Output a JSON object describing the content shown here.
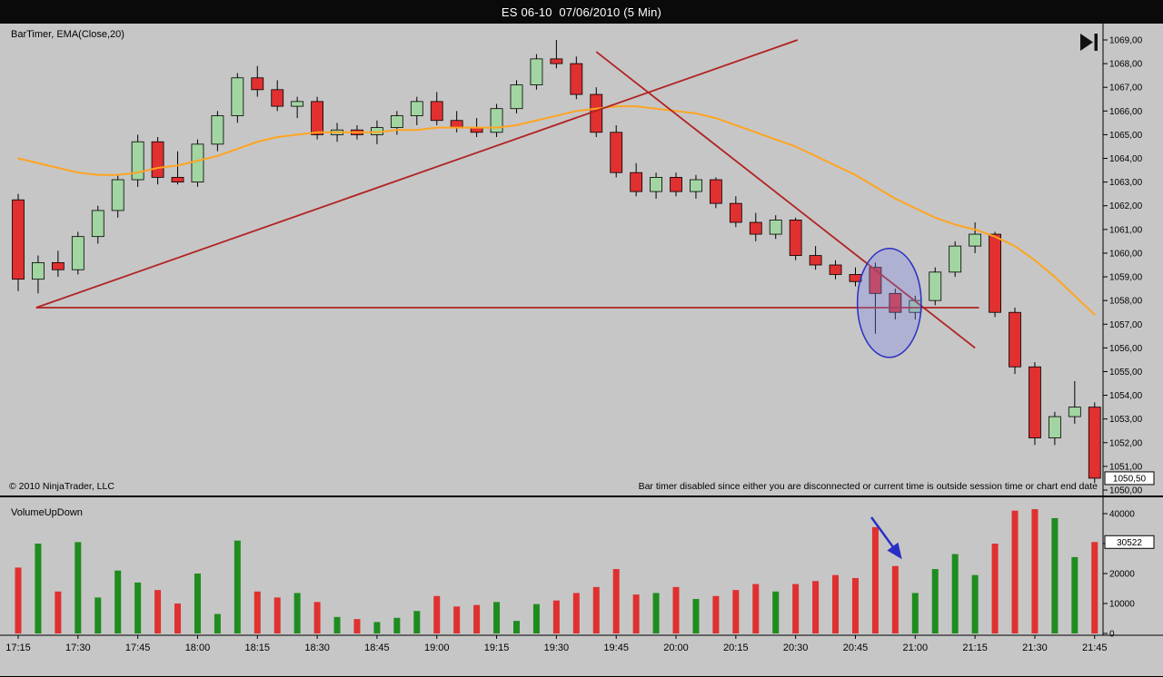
{
  "title_bar": {
    "title": "ES 06-10  07/06/2010 (5 Min)"
  },
  "price_panel": {
    "indicator_label": "BarTimer, EMA(Close,20)",
    "copyright": "© 2010 NinjaTrader, LLC",
    "bar_timer_message": "Bar timer disabled since either you are disconnected or current time is outside session time or chart end date",
    "price_marker": "1050,50"
  },
  "volume_panel": {
    "label": "VolumeUpDown",
    "volume_marker": "30522"
  },
  "chart_data": {
    "type": "candlestick+volume",
    "title": "ES 06-10  07/06/2010 (5 Min)",
    "instrument": "ES 06-10",
    "session_date": "07/06/2010",
    "interval": "5 Min",
    "times": [
      "17:15",
      "17:20",
      "17:25",
      "17:30",
      "17:35",
      "17:40",
      "17:45",
      "17:50",
      "17:55",
      "18:00",
      "18:05",
      "18:10",
      "18:15",
      "18:20",
      "18:25",
      "18:30",
      "18:35",
      "18:40",
      "18:45",
      "18:50",
      "18:55",
      "19:00",
      "19:05",
      "19:10",
      "19:15",
      "19:20",
      "19:25",
      "19:30",
      "19:35",
      "19:40",
      "19:45",
      "19:50",
      "19:55",
      "20:00",
      "20:05",
      "20:10",
      "20:15",
      "20:20",
      "20:25",
      "20:30",
      "20:35",
      "20:40",
      "20:45",
      "20:50",
      "20:55",
      "21:00",
      "21:05",
      "21:10",
      "21:15",
      "21:20",
      "21:25",
      "21:30",
      "21:35",
      "21:40",
      "21:45"
    ],
    "candles": [
      [
        1062.25,
        1062.5,
        1058.4,
        1058.9
      ],
      [
        1058.9,
        1059.9,
        1058.3,
        1059.6
      ],
      [
        1059.6,
        1060.1,
        1059.0,
        1059.3
      ],
      [
        1059.3,
        1060.9,
        1059.1,
        1060.7
      ],
      [
        1060.7,
        1062.0,
        1060.4,
        1061.8
      ],
      [
        1061.8,
        1063.3,
        1061.5,
        1063.1
      ],
      [
        1063.1,
        1065.0,
        1062.8,
        1064.7
      ],
      [
        1064.7,
        1064.9,
        1062.9,
        1063.2
      ],
      [
        1063.2,
        1064.3,
        1062.9,
        1063.0
      ],
      [
        1063.0,
        1064.8,
        1062.8,
        1064.6
      ],
      [
        1064.6,
        1066.0,
        1064.3,
        1065.8
      ],
      [
        1065.8,
        1067.6,
        1065.5,
        1067.4
      ],
      [
        1067.4,
        1067.9,
        1066.6,
        1066.9
      ],
      [
        1066.9,
        1067.3,
        1066.0,
        1066.2
      ],
      [
        1066.2,
        1066.6,
        1065.7,
        1066.4
      ],
      [
        1066.4,
        1066.6,
        1064.8,
        1065.0
      ],
      [
        1065.0,
        1065.5,
        1064.7,
        1065.2
      ],
      [
        1065.2,
        1065.4,
        1064.8,
        1065.0
      ],
      [
        1065.0,
        1065.6,
        1064.6,
        1065.3
      ],
      [
        1065.3,
        1066.0,
        1065.0,
        1065.8
      ],
      [
        1065.8,
        1066.6,
        1065.4,
        1066.4
      ],
      [
        1066.4,
        1066.8,
        1065.4,
        1065.6
      ],
      [
        1065.6,
        1066.0,
        1065.1,
        1065.3
      ],
      [
        1065.3,
        1065.7,
        1064.9,
        1065.1
      ],
      [
        1065.1,
        1066.3,
        1064.9,
        1066.1
      ],
      [
        1066.1,
        1067.3,
        1065.9,
        1067.1
      ],
      [
        1067.1,
        1068.4,
        1066.9,
        1068.2
      ],
      [
        1068.2,
        1069.0,
        1067.8,
        1068.0
      ],
      [
        1068.0,
        1068.3,
        1066.5,
        1066.7
      ],
      [
        1066.7,
        1067.0,
        1064.9,
        1065.1
      ],
      [
        1065.1,
        1065.4,
        1063.2,
        1063.4
      ],
      [
        1063.4,
        1063.8,
        1062.4,
        1062.6
      ],
      [
        1062.6,
        1063.4,
        1062.3,
        1063.2
      ],
      [
        1063.2,
        1063.4,
        1062.4,
        1062.6
      ],
      [
        1062.6,
        1063.3,
        1062.3,
        1063.1
      ],
      [
        1063.1,
        1063.2,
        1061.9,
        1062.1
      ],
      [
        1062.1,
        1062.4,
        1061.1,
        1061.3
      ],
      [
        1061.3,
        1061.7,
        1060.5,
        1060.8
      ],
      [
        1060.8,
        1061.6,
        1060.6,
        1061.4
      ],
      [
        1061.4,
        1061.5,
        1059.7,
        1059.9
      ],
      [
        1059.9,
        1060.3,
        1059.3,
        1059.5
      ],
      [
        1059.5,
        1059.7,
        1058.9,
        1059.1
      ],
      [
        1059.1,
        1059.4,
        1058.6,
        1058.8
      ],
      [
        1059.4,
        1059.6,
        1056.6,
        1058.3
      ],
      [
        1058.3,
        1058.5,
        1057.2,
        1057.5
      ],
      [
        1057.5,
        1058.2,
        1057.2,
        1058.0
      ],
      [
        1058.0,
        1059.4,
        1057.8,
        1059.2
      ],
      [
        1059.2,
        1060.5,
        1059.0,
        1060.3
      ],
      [
        1060.3,
        1061.3,
        1060.0,
        1060.8
      ],
      [
        1060.8,
        1060.9,
        1057.3,
        1057.5
      ],
      [
        1057.5,
        1057.7,
        1054.9,
        1055.2
      ],
      [
        1055.2,
        1055.4,
        1051.9,
        1052.2
      ],
      [
        1052.2,
        1053.3,
        1051.9,
        1053.1
      ],
      [
        1053.1,
        1054.6,
        1052.8,
        1053.5
      ],
      [
        1053.5,
        1053.7,
        1050.3,
        1050.5
      ]
    ],
    "volume": [
      22000,
      30000,
      14000,
      30500,
      12000,
      21000,
      17000,
      14500,
      10000,
      20000,
      6500,
      31000,
      14000,
      12000,
      13500,
      10500,
      5500,
      4800,
      3800,
      5200,
      7500,
      12500,
      9000,
      9500,
      10500,
      4200,
      9800,
      11000,
      13500,
      15500,
      21500,
      13000,
      13500,
      15500,
      11500,
      12500,
      14500,
      16500,
      14000,
      16500,
      17500,
      19500,
      18500,
      35500,
      22500,
      13500,
      21500,
      26500,
      19500,
      30000,
      41000,
      41500,
      38500,
      25500,
      30522
    ],
    "ema20": [
      1064.0,
      1063.8,
      1063.6,
      1063.4,
      1063.3,
      1063.3,
      1063.4,
      1063.6,
      1063.7,
      1063.9,
      1064.1,
      1064.4,
      1064.7,
      1064.9,
      1065.0,
      1065.1,
      1065.1,
      1065.1,
      1065.1,
      1065.2,
      1065.2,
      1065.3,
      1065.3,
      1065.3,
      1065.3,
      1065.4,
      1065.6,
      1065.8,
      1066.0,
      1066.1,
      1066.2,
      1066.2,
      1066.1,
      1066.0,
      1065.9,
      1065.7,
      1065.4,
      1065.1,
      1064.8,
      1064.5,
      1064.1,
      1063.7,
      1063.3,
      1062.8,
      1062.3,
      1061.9,
      1061.5,
      1061.2,
      1061.0,
      1060.7,
      1060.3,
      1059.7,
      1059.0,
      1058.2,
      1057.4
    ],
    "x_axis_labels": [
      "17:15",
      "17:30",
      "17:45",
      "18:00",
      "18:15",
      "18:30",
      "18:45",
      "19:00",
      "19:15",
      "19:30",
      "19:45",
      "20:00",
      "20:15",
      "20:30",
      "20:45",
      "21:00",
      "21:15",
      "21:30",
      "21:45"
    ],
    "price_axis": {
      "min": 1050,
      "max": 1069,
      "step": 1,
      "decimal_separator": "comma"
    },
    "volume_axis": {
      "min": 0,
      "max": 40000,
      "ticks": [
        0,
        10000,
        20000,
        30000,
        40000
      ]
    },
    "last_price": 1050.5,
    "last_volume": 30522,
    "trend_lines": [
      {
        "from_bar": 0.9,
        "from_price": 1057.7,
        "to_bar": 39.1,
        "to_price": 1069.0
      },
      {
        "from_bar": 29.0,
        "from_price": 1068.5,
        "to_bar": 48.0,
        "to_price": 1056.0
      },
      {
        "from_bar": 0.9,
        "from_price": 1057.7,
        "to_bar": 48.2,
        "to_price": 1057.7
      }
    ],
    "ellipse_annotation": {
      "center_bar": 43.7,
      "center_price": 1057.9,
      "rx_bars": 1.6,
      "ry_points": 2.3
    },
    "volume_arrow": {
      "from_bar": 42.8,
      "from_vol": 38800,
      "to_bar": 44.2,
      "to_vol": 26000
    },
    "legend_position": "none",
    "grid": "off",
    "colors": {
      "background": "#c6c6c6",
      "titlebar_bg": "#0a0a0a",
      "candle_up": "#a2d5a2",
      "candle_down": "#e03030",
      "wick": "#000000",
      "vol_up": "#1f8c1f",
      "vol_down": "#e03030",
      "ema": "#ffa420",
      "trend": "#b22222",
      "annotation_fill": "#7b86e8",
      "annotation_stroke": "#2a2fc4",
      "axis_text": "#000000",
      "marker_bg": "#ffffff"
    }
  }
}
